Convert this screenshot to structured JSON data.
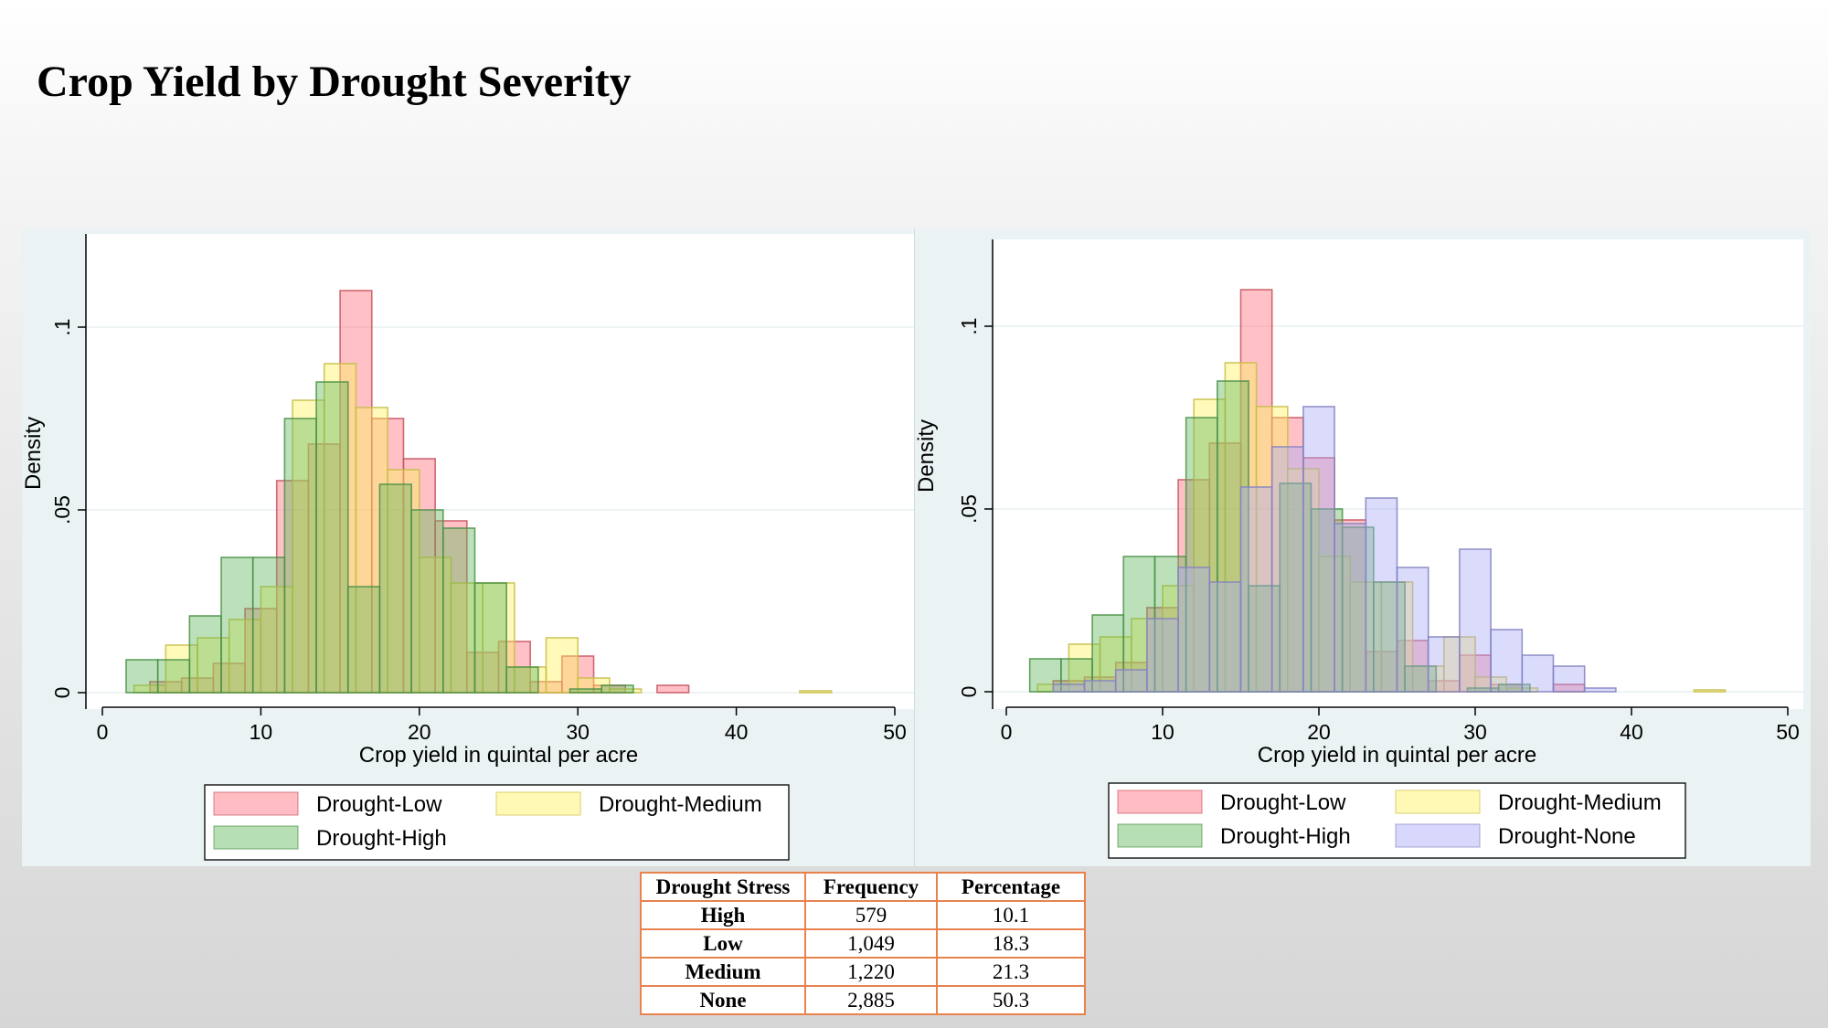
{
  "title": "Crop Yield by Drought Severity",
  "colors": {
    "Drought-Low": "#ff6b78",
    "Drought-Medium": "#fff25a",
    "Drought-High": "#5fb85a",
    "Drought-None": "#a9a9f8"
  },
  "table": {
    "headers": [
      "Drought Stress",
      "Frequency",
      "Percentage"
    ],
    "rows": [
      {
        "label": "High",
        "frequency": "579",
        "percentage": "10.1"
      },
      {
        "label": "Low",
        "frequency": "1,049",
        "percentage": "18.3"
      },
      {
        "label": "Medium",
        "frequency": "1,220",
        "percentage": "21.3"
      },
      {
        "label": "None",
        "frequency": "2,885",
        "percentage": "50.3"
      }
    ]
  },
  "chart_data": [
    {
      "type": "histogram",
      "title": "",
      "xlabel": "Crop yield in quintal per acre",
      "ylabel": "Density",
      "xlim": [
        0,
        50
      ],
      "ylim": [
        0,
        0.11
      ],
      "xticks": [
        0,
        10,
        20,
        30,
        40,
        50
      ],
      "xtick_labels": [
        "0",
        "10",
        "20",
        "30",
        "40",
        "50"
      ],
      "yticks": [
        0,
        0.05,
        0.1
      ],
      "ytick_labels": [
        "0",
        ".05",
        ".1"
      ],
      "grid": true,
      "legend": "bottom",
      "legend_order": [
        "Drought-Low",
        "Drought-Medium",
        "Drought-High"
      ],
      "series": [
        {
          "name": "Drought-Low",
          "bins": [
            [
              3,
              5,
              0.003
            ],
            [
              5,
              7,
              0.004
            ],
            [
              7,
              9,
              0.008
            ],
            [
              9,
              11,
              0.023
            ],
            [
              11,
              13,
              0.058
            ],
            [
              13,
              15,
              0.068
            ],
            [
              15,
              17,
              0.11
            ],
            [
              17,
              19,
              0.075
            ],
            [
              19,
              21,
              0.064
            ],
            [
              21,
              23,
              0.047
            ],
            [
              23,
              25,
              0.011
            ],
            [
              25,
              27,
              0.014
            ],
            [
              27,
              29,
              0.003
            ],
            [
              29,
              31,
              0.01
            ],
            [
              31,
              33,
              0.002
            ],
            [
              35,
              37,
              0.002
            ]
          ]
        },
        {
          "name": "Drought-Medium",
          "bins": [
            [
              2,
              4,
              0.002
            ],
            [
              4,
              6,
              0.013
            ],
            [
              6,
              8,
              0.015
            ],
            [
              8,
              10,
              0.02
            ],
            [
              10,
              12,
              0.029
            ],
            [
              12,
              14,
              0.08
            ],
            [
              14,
              16,
              0.09
            ],
            [
              16,
              18,
              0.078
            ],
            [
              18,
              20,
              0.061
            ],
            [
              20,
              22,
              0.037
            ],
            [
              22,
              24,
              0.03
            ],
            [
              24,
              26,
              0.03
            ],
            [
              26,
              28,
              0.007
            ],
            [
              28,
              30,
              0.015
            ],
            [
              30,
              32,
              0.004
            ],
            [
              32,
              34,
              0.001
            ],
            [
              44,
              46,
              0.0005
            ]
          ]
        },
        {
          "name": "Drought-High",
          "bins": [
            [
              1.5,
              3.5,
              0.009
            ],
            [
              3.5,
              5.5,
              0.009
            ],
            [
              5.5,
              7.5,
              0.021
            ],
            [
              7.5,
              9.5,
              0.037
            ],
            [
              9.5,
              11.5,
              0.037
            ],
            [
              11.5,
              13.5,
              0.075
            ],
            [
              13.5,
              15.5,
              0.085
            ],
            [
              15.5,
              17.5,
              0.029
            ],
            [
              17.5,
              19.5,
              0.057
            ],
            [
              19.5,
              21.5,
              0.05
            ],
            [
              21.5,
              23.5,
              0.045
            ],
            [
              23.5,
              25.5,
              0.03
            ],
            [
              25.5,
              27.5,
              0.007
            ],
            [
              29.5,
              31.5,
              0.001
            ],
            [
              31.5,
              33.5,
              0.002
            ]
          ]
        }
      ]
    },
    {
      "type": "histogram",
      "title": "",
      "xlabel": "Crop yield in quintal per acre",
      "ylabel": "Density",
      "xlim": [
        0,
        50
      ],
      "ylim": [
        0,
        0.11
      ],
      "xticks": [
        0,
        10,
        20,
        30,
        40,
        50
      ],
      "xtick_labels": [
        "0",
        "10",
        "20",
        "30",
        "40",
        "50"
      ],
      "yticks": [
        0,
        0.05,
        0.1
      ],
      "ytick_labels": [
        "0",
        ".05",
        ".1"
      ],
      "grid": true,
      "legend": "bottom",
      "legend_order": [
        "Drought-Low",
        "Drought-Medium",
        "Drought-High",
        "Drought-None"
      ],
      "series": [
        {
          "name": "Drought-Low",
          "bins": [
            [
              3,
              5,
              0.003
            ],
            [
              5,
              7,
              0.004
            ],
            [
              7,
              9,
              0.008
            ],
            [
              9,
              11,
              0.023
            ],
            [
              11,
              13,
              0.058
            ],
            [
              13,
              15,
              0.068
            ],
            [
              15,
              17,
              0.11
            ],
            [
              17,
              19,
              0.075
            ],
            [
              19,
              21,
              0.064
            ],
            [
              21,
              23,
              0.047
            ],
            [
              23,
              25,
              0.011
            ],
            [
              25,
              27,
              0.014
            ],
            [
              27,
              29,
              0.003
            ],
            [
              29,
              31,
              0.01
            ],
            [
              31,
              33,
              0.002
            ],
            [
              35,
              37,
              0.002
            ]
          ]
        },
        {
          "name": "Drought-Medium",
          "bins": [
            [
              2,
              4,
              0.002
            ],
            [
              4,
              6,
              0.013
            ],
            [
              6,
              8,
              0.015
            ],
            [
              8,
              10,
              0.02
            ],
            [
              10,
              12,
              0.029
            ],
            [
              12,
              14,
              0.08
            ],
            [
              14,
              16,
              0.09
            ],
            [
              16,
              18,
              0.078
            ],
            [
              18,
              20,
              0.061
            ],
            [
              20,
              22,
              0.037
            ],
            [
              22,
              24,
              0.03
            ],
            [
              24,
              26,
              0.03
            ],
            [
              26,
              28,
              0.007
            ],
            [
              28,
              30,
              0.015
            ],
            [
              30,
              32,
              0.004
            ],
            [
              32,
              34,
              0.001
            ],
            [
              44,
              46,
              0.0005
            ]
          ]
        },
        {
          "name": "Drought-High",
          "bins": [
            [
              1.5,
              3.5,
              0.009
            ],
            [
              3.5,
              5.5,
              0.009
            ],
            [
              5.5,
              7.5,
              0.021
            ],
            [
              7.5,
              9.5,
              0.037
            ],
            [
              9.5,
              11.5,
              0.037
            ],
            [
              11.5,
              13.5,
              0.075
            ],
            [
              13.5,
              15.5,
              0.085
            ],
            [
              15.5,
              17.5,
              0.029
            ],
            [
              17.5,
              19.5,
              0.057
            ],
            [
              19.5,
              21.5,
              0.05
            ],
            [
              21.5,
              23.5,
              0.045
            ],
            [
              23.5,
              25.5,
              0.03
            ],
            [
              25.5,
              27.5,
              0.007
            ],
            [
              29.5,
              31.5,
              0.001
            ],
            [
              31.5,
              33.5,
              0.002
            ]
          ]
        },
        {
          "name": "Drought-None",
          "bins": [
            [
              3,
              5,
              0.002
            ],
            [
              5,
              7,
              0.003
            ],
            [
              7,
              9,
              0.006
            ],
            [
              9,
              11,
              0.02
            ],
            [
              11,
              13,
              0.034
            ],
            [
              13,
              15,
              0.03
            ],
            [
              15,
              17,
              0.056
            ],
            [
              17,
              19,
              0.067
            ],
            [
              19,
              21,
              0.078
            ],
            [
              21,
              23,
              0.046
            ],
            [
              23,
              25,
              0.053
            ],
            [
              25,
              27,
              0.034
            ],
            [
              27,
              29,
              0.015
            ],
            [
              29,
              31,
              0.039
            ],
            [
              31,
              33,
              0.017
            ],
            [
              33,
              35,
              0.01
            ],
            [
              35,
              37,
              0.007
            ],
            [
              37,
              39,
              0.001
            ]
          ]
        }
      ]
    }
  ]
}
